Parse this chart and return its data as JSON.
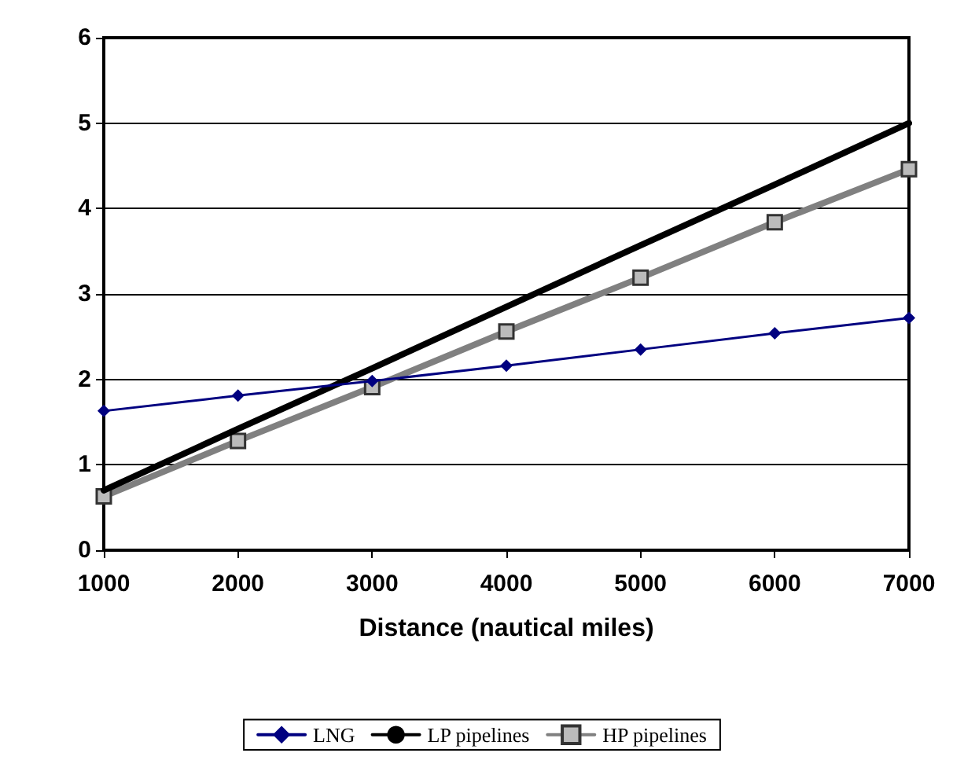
{
  "chart_data": {
    "type": "line",
    "xlabel": "Distance (nautical miles)",
    "x": [
      1000,
      2000,
      3000,
      4000,
      5000,
      6000,
      7000
    ],
    "xlim": [
      1000,
      7000
    ],
    "xticks": [
      1000,
      2000,
      3000,
      4000,
      5000,
      6000,
      7000
    ],
    "ylim": [
      0,
      6
    ],
    "yticks": [
      0,
      1,
      2,
      3,
      4,
      5,
      6
    ],
    "grid": "y",
    "legend": "bottom",
    "series": [
      {
        "name": "LNG",
        "color": "#000080",
        "marker": "diamond",
        "values": [
          1.63,
          1.81,
          1.98,
          2.16,
          2.35,
          2.54,
          2.72
        ]
      },
      {
        "name": "LP pipelines",
        "color": "#000000",
        "marker": "none",
        "values": [
          0.7,
          1.42,
          2.13,
          2.85,
          3.57,
          4.28,
          5.0
        ]
      },
      {
        "name": "HP pipelines",
        "color": "#808080",
        "marker": "square",
        "values": [
          0.63,
          1.28,
          1.91,
          2.56,
          3.19,
          3.84,
          4.46
        ]
      }
    ]
  }
}
